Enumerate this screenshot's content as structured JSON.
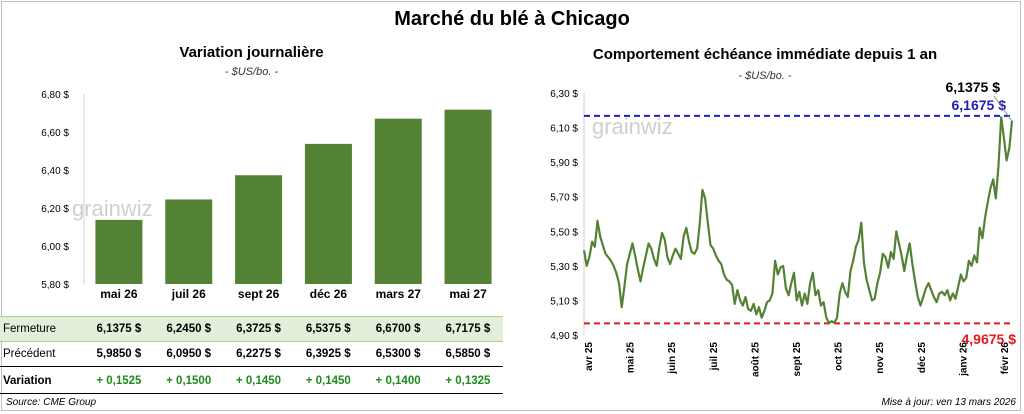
{
  "title": "Marché du blé à Chicago",
  "left_chart": {
    "title": "Variation journalière",
    "subtitle": "- $US/bo. -",
    "watermark": "grainwiz"
  },
  "right_chart": {
    "title": "Comportement  échéance immédiate depuis 1 an",
    "subtitle": "- $US/bo. -",
    "watermark": "grainwiz",
    "label_last": "6,1375 $",
    "label_high": "6,1675 $",
    "label_low": "4,9675 $"
  },
  "table": {
    "close_label": "Fermeture",
    "prev_label": "Précédent",
    "var_label": "Variation",
    "close": [
      "6,1375  $",
      "6,2450  $",
      "6,3725  $",
      "6,5375  $",
      "6,6700  $",
      "6,7175  $"
    ],
    "prev": [
      "5,9850  $",
      "6,0950  $",
      "6,2275  $",
      "6,3925  $",
      "6,5300  $",
      "6,5850  $"
    ],
    "var": [
      "+ 0,1525",
      "+ 0,1500",
      "+ 0,1450",
      "+ 0,1450",
      "+ 0,1400",
      "+ 0,1325"
    ]
  },
  "source": "Source: CME Group",
  "update": "Mise à jour: ven 13 mars 2026",
  "colors": {
    "bar": "#548235",
    "line": "#548235",
    "high": "#1f1fbf",
    "low": "#e01b1b"
  },
  "chart_data": [
    {
      "type": "bar",
      "categories": [
        "mai 26",
        "juil 26",
        "sept 26",
        "déc 26",
        "mars 27",
        "mai 27"
      ],
      "values": [
        6.1375,
        6.245,
        6.3725,
        6.5375,
        6.67,
        6.7175
      ],
      "ylim": [
        5.8,
        6.8
      ],
      "yticks": [
        "5,80 $",
        "6,00 $",
        "6,20 $",
        "6,40 $",
        "6,60 $",
        "6,80 $"
      ],
      "ytick_values": [
        5.8,
        6.0,
        6.2,
        6.4,
        6.6,
        6.8
      ],
      "grid": false
    },
    {
      "type": "line",
      "xticks": [
        "avr 25",
        "mai 25",
        "juin 25",
        "juil 25",
        "août 25",
        "sept 25",
        "oct 25",
        "nov 25",
        "déc 25",
        "janv 26",
        "févr 26"
      ],
      "ylim": [
        4.9,
        6.3
      ],
      "yticks": [
        "4,90 $",
        "5,10 $",
        "5,30 $",
        "5,50 $",
        "5,70 $",
        "5,90 $",
        "6,10 $",
        "6,30 $"
      ],
      "ytick_values": [
        4.9,
        5.1,
        5.3,
        5.5,
        5.7,
        5.9,
        6.1,
        6.3
      ],
      "high": 6.1675,
      "low": 4.9675,
      "last": 6.1375,
      "values": [
        5.39,
        5.3,
        5.35,
        5.44,
        5.41,
        5.56,
        5.47,
        5.42,
        5.37,
        5.35,
        5.33,
        5.3,
        5.26,
        5.2,
        5.06,
        5.18,
        5.31,
        5.37,
        5.43,
        5.36,
        5.28,
        5.21,
        5.29,
        5.36,
        5.43,
        5.4,
        5.34,
        5.3,
        5.41,
        5.49,
        5.45,
        5.35,
        5.31,
        5.36,
        5.4,
        5.37,
        5.34,
        5.47,
        5.52,
        5.44,
        5.38,
        5.37,
        5.4,
        5.54,
        5.74,
        5.69,
        5.55,
        5.42,
        5.4,
        5.36,
        5.33,
        5.31,
        5.25,
        5.22,
        5.21,
        5.19,
        5.08,
        5.16,
        5.1,
        5.07,
        5.12,
        5.05,
        5.04,
        5.08,
        5.02,
        5.06,
        5.0,
        5.04,
        5.09,
        5.1,
        5.14,
        5.33,
        5.25,
        5.29,
        5.3,
        5.17,
        5.13,
        5.2,
        5.26,
        5.1,
        5.15,
        5.07,
        5.14,
        5.08,
        5.2,
        5.26,
        5.13,
        5.16,
        5.07,
        5.09,
        5.0,
        4.97,
        4.98,
        4.97,
        5.0,
        5.14,
        5.2,
        5.15,
        5.12,
        5.27,
        5.33,
        5.41,
        5.45,
        5.55,
        5.32,
        5.22,
        5.16,
        5.1,
        5.11,
        5.2,
        5.26,
        5.37,
        5.35,
        5.29,
        5.38,
        5.34,
        5.5,
        5.43,
        5.36,
        5.27,
        5.36,
        5.43,
        5.31,
        5.21,
        5.12,
        5.07,
        5.12,
        5.17,
        5.2,
        5.16,
        5.12,
        5.09,
        5.14,
        5.15,
        5.13,
        5.16,
        5.1,
        5.14,
        5.11,
        5.18,
        5.25,
        5.21,
        5.23,
        5.33,
        5.3,
        5.36,
        5.32,
        5.52,
        5.46,
        5.58,
        5.67,
        5.75,
        5.8,
        5.69,
        5.88,
        6.16,
        6.04,
        5.91,
        5.98,
        6.14
      ]
    }
  ]
}
